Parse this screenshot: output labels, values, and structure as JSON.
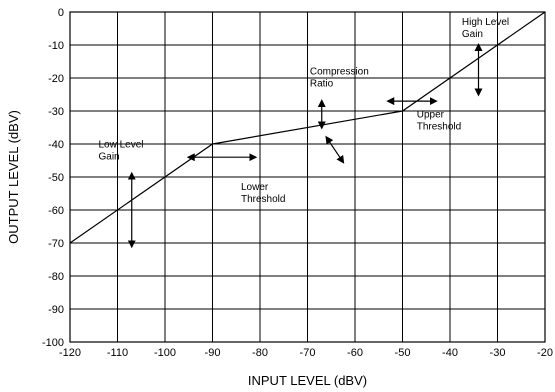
{
  "chart_data": {
    "type": "line",
    "xlabel": "INPUT LEVEL (dBV)",
    "ylabel": "OUTPUT LEVEL (dBV)",
    "xlim": [
      -120,
      -20
    ],
    "ylim": [
      -100,
      0
    ],
    "grid": true,
    "x_ticks": [
      "-120",
      "-110",
      "-100",
      "-90",
      "-80",
      "-70",
      "-60",
      "-50",
      "-40",
      "-30",
      "-20"
    ],
    "y_ticks": [
      "0",
      "-10",
      "-20",
      "-30",
      "-40",
      "-50",
      "-60",
      "-70",
      "-80",
      "-90",
      "-100"
    ],
    "series": [
      {
        "x": [
          -120,
          -90,
          -50,
          -20
        ],
        "y": [
          -70,
          -40,
          -30,
          0
        ]
      }
    ],
    "annotations": [
      {
        "label": "high-level-gain",
        "lines": [
          "High Level",
          "Gain"
        ],
        "x": -37.5,
        "y": -4
      },
      {
        "label": "compression-ratio",
        "lines": [
          "Compression",
          "Ratio"
        ],
        "x": -69.5,
        "y": -19
      },
      {
        "label": "upper-threshold",
        "lines": [
          "Upper",
          "Threshold"
        ],
        "x": -47,
        "y": -32
      },
      {
        "label": "low-level-gain",
        "lines": [
          "Low Level",
          "Gain"
        ],
        "x": -114,
        "y": -41
      },
      {
        "label": "lower-threshold",
        "lines": [
          "Lower",
          "Threshold"
        ],
        "x": -84,
        "y": -54
      }
    ],
    "arrows": [
      {
        "label": "low-level-gain-arrow",
        "x1": -107,
        "y1": -49,
        "x2": -107,
        "y2": -71
      },
      {
        "label": "lower-threshold-arrow",
        "x1": -95,
        "y1": -44,
        "x2": -81,
        "y2": -44
      },
      {
        "label": "compression-ratio-arrow-upper",
        "x1": -67,
        "y1": -35,
        "x2": -67,
        "y2": -27
      },
      {
        "label": "compression-ratio-arrow-lower",
        "x1": -66,
        "y1": -38,
        "x2": -62.5,
        "y2": -45.5
      },
      {
        "label": "upper-threshold-arrow",
        "x1": -53,
        "y1": -27,
        "x2": -43,
        "y2": -27
      },
      {
        "label": "high-level-gain-arrow",
        "x1": -34,
        "y1": -10,
        "x2": -34,
        "y2": -25
      }
    ]
  }
}
